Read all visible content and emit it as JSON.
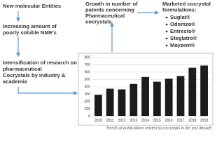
{
  "steps": [
    {
      "lines": [
        "New molecular Entities"
      ]
    },
    {
      "lines": [
        "Increasing amount of",
        "poorly soluble NME's"
      ]
    },
    {
      "lines": [
        "Intensification of research on",
        "pharmaceutical",
        "Cocrystals by industry &",
        "academia"
      ]
    }
  ],
  "growth": {
    "lines": [
      "Growth in number of",
      "patents concerning",
      "Pharmaceutical",
      "cocrystals"
    ]
  },
  "marketed": {
    "heading": [
      "Marketed cocrystal",
      "formulations:"
    ],
    "items": [
      "Suglat®",
      "Odomzo®",
      "Entresto®",
      "Steglatro®",
      "Mayzent®"
    ]
  },
  "chart_data": {
    "type": "bar",
    "caption": "Trends of publications related to cocrystals in the last decade.",
    "categories": [
      "2010",
      "2011",
      "2012",
      "2013",
      "2014",
      "2015",
      "2016",
      "2017",
      "2018",
      "2019"
    ],
    "values": [
      290,
      375,
      365,
      440,
      535,
      470,
      510,
      545,
      660,
      690
    ],
    "color": "#1c1c1c",
    "ylim": [
      0,
      800
    ],
    "yticks": [
      0,
      100,
      200,
      300,
      400,
      500,
      600,
      700,
      800
    ],
    "grid": true
  }
}
